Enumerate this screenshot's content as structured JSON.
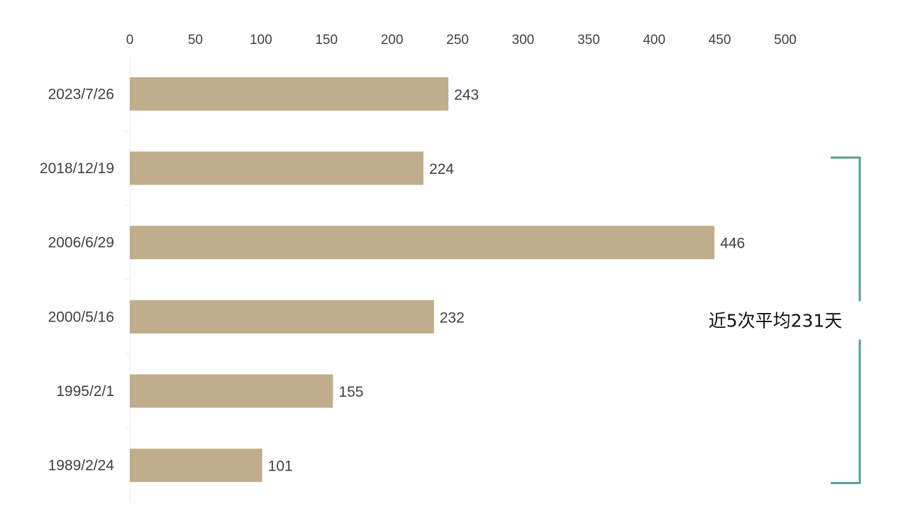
{
  "chart_data": {
    "type": "bar",
    "orientation": "horizontal",
    "categories": [
      "2023/7/26",
      "2018/12/19",
      "2006/6/29",
      "2000/5/16",
      "1995/2/1",
      "1989/2/24"
    ],
    "values": [
      243,
      224,
      446,
      232,
      155,
      101
    ],
    "xlim": [
      0,
      500
    ],
    "xticks": [
      0,
      50,
      100,
      150,
      200,
      250,
      300,
      350,
      400,
      450,
      500
    ],
    "x_axis_position": "top",
    "grid": false,
    "legend": "none",
    "bar_color": "#bfad8c",
    "annotation": {
      "text": "近5次平均231天",
      "bracket_color": "#5a9e96",
      "covers_categories": [
        "2018/12/19",
        "2006/6/29",
        "2000/5/16",
        "1995/2/1",
        "1989/2/24"
      ]
    }
  }
}
